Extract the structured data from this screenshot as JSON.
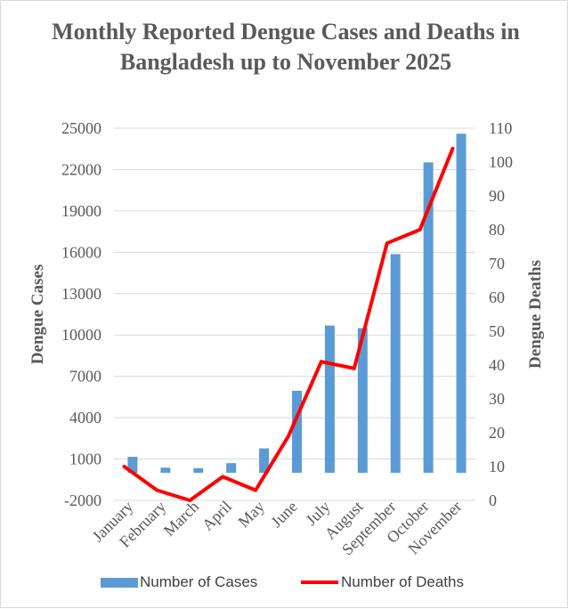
{
  "chart_data": {
    "type": "bar+line",
    "title": "Monthly Reported Dengue Cases and Deaths in Bangladesh up to November 2025",
    "categories": [
      "January",
      "February",
      "March",
      "April",
      "May",
      "June",
      "July",
      "August",
      "September",
      "October",
      "November"
    ],
    "series": [
      {
        "name": "Number of Cases",
        "type": "bar",
        "axis": "left",
        "color": "#5b9bd5",
        "values": [
          1161,
          374,
          336,
          701,
          1773,
          5951,
          10684,
          10496,
          15866,
          22520,
          24600
        ]
      },
      {
        "name": "Number of Deaths",
        "type": "line",
        "axis": "right",
        "color": "#ff0000",
        "values": [
          10,
          3,
          0,
          7,
          3,
          19,
          41,
          39,
          76,
          80,
          104
        ]
      }
    ],
    "ylabel_left": "Dengue Cases",
    "ylabel_right": "Dengue Deaths",
    "ylim_left": [
      -2000,
      25000
    ],
    "yticks_left": [
      "25000",
      "22000",
      "19000",
      "16000",
      "13000",
      "10000",
      "7000",
      "4000",
      "1000",
      "-2000"
    ],
    "ylim_right": [
      0,
      110
    ],
    "yticks_right": [
      "110",
      "100",
      "90",
      "80",
      "70",
      "60",
      "50",
      "40",
      "30",
      "20",
      "10",
      "0"
    ],
    "grid": true,
    "legend_position": "bottom"
  },
  "legend": {
    "cases_label": "Number of Cases",
    "deaths_label": "Number of Deaths"
  }
}
